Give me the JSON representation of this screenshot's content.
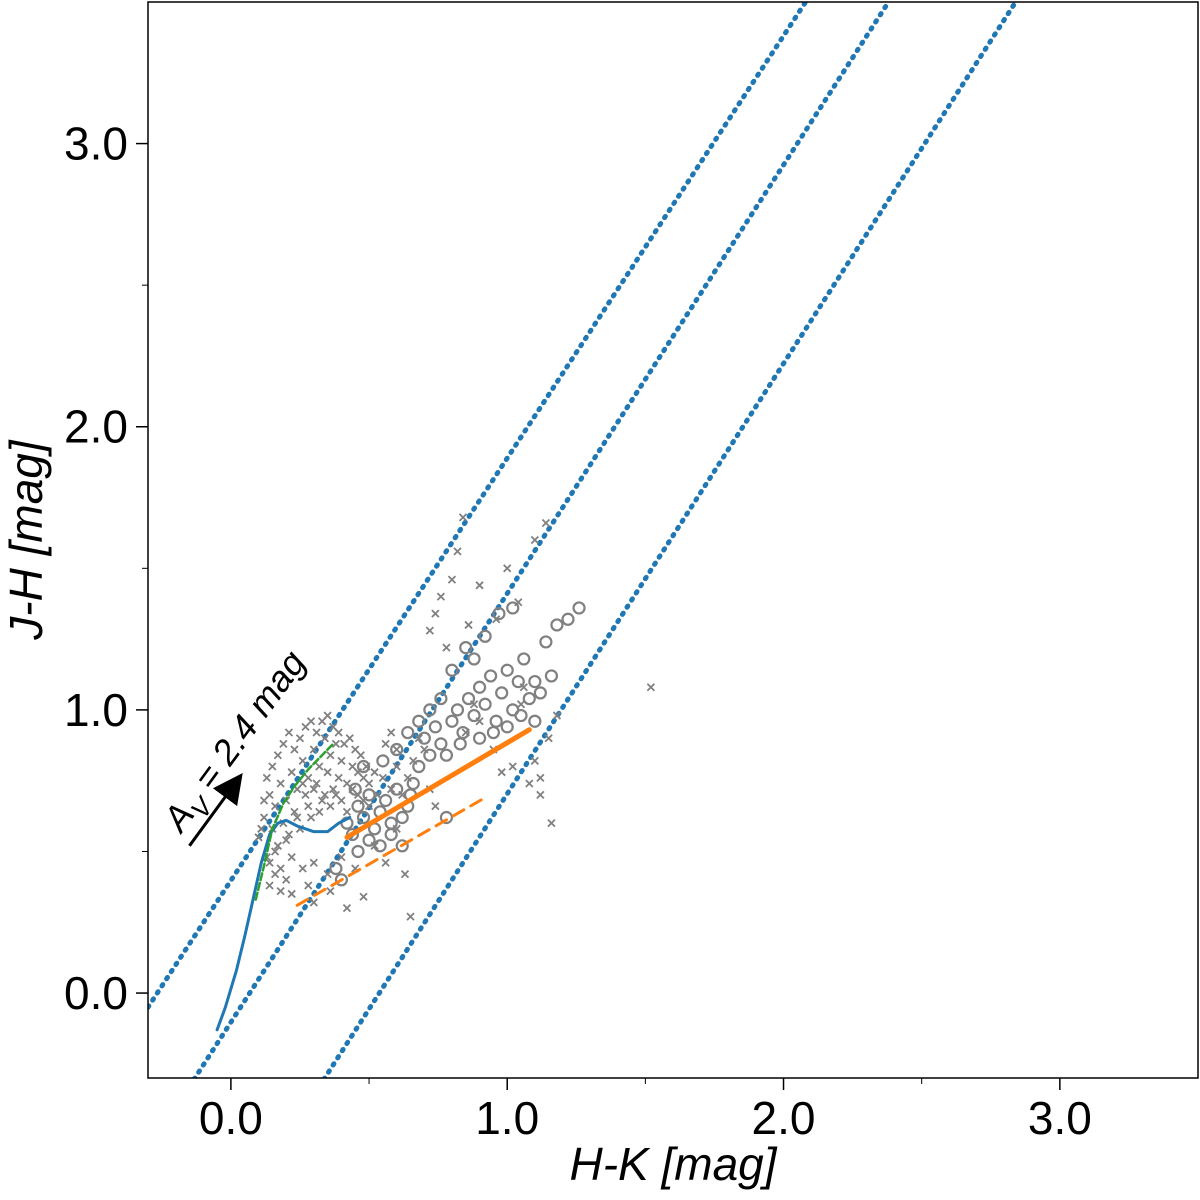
{
  "chart_data": {
    "type": "scatter",
    "xlabel": "H-K [mag]",
    "ylabel": "J-H [mag]",
    "xlim": [
      -0.3,
      3.5
    ],
    "ylim": [
      -0.3,
      3.5
    ],
    "x_ticks": [
      {
        "value": 0.0,
        "label": "0.0"
      },
      {
        "value": 1.0,
        "label": "1.0"
      },
      {
        "value": 2.0,
        "label": "2.0"
      },
      {
        "value": 3.0,
        "label": "3.0"
      }
    ],
    "y_ticks": [
      {
        "value": 0.0,
        "label": "0.0"
      },
      {
        "value": 1.0,
        "label": "1.0"
      },
      {
        "value": 2.0,
        "label": "2.0"
      },
      {
        "value": 3.0,
        "label": "3.0"
      }
    ],
    "minor_ticks": [
      -0.5,
      0.5,
      1.5,
      2.5
    ],
    "grid": false,
    "colors": {
      "dotted": "#1f77b4",
      "dwarf_locus": "#1f77b4",
      "giant_branch": "#2ca02c",
      "ctts": "#ff7f0e",
      "points": "#808080"
    },
    "annotation": {
      "text": "AV = 2.4 mag",
      "label_main": "A",
      "label_sub": "V",
      "label_rest": " = 2.4 mag",
      "arrow_from": [
        -0.15,
        0.52
      ],
      "arrow_to": [
        0.03,
        0.76
      ]
    },
    "reddening_lines": [
      {
        "name": "",
        "style": "dotted",
        "x": [
          -0.3,
          2.08
        ],
        "y": [
          -0.05,
          3.5
        ]
      },
      {
        "name": "",
        "style": "dotted",
        "x": [
          -0.15,
          2.38
        ],
        "y": [
          -0.33,
          3.5
        ]
      },
      {
        "name": "",
        "style": "dotted",
        "x": [
          0.32,
          2.84
        ],
        "y": [
          -0.33,
          3.5
        ]
      }
    ],
    "dwarf_locus": {
      "x": [
        -0.05,
        -0.02,
        0.02,
        0.05,
        0.08,
        0.11,
        0.14,
        0.17,
        0.2,
        0.24,
        0.3,
        0.35,
        0.39,
        0.43
      ],
      "y": [
        -0.13,
        -0.05,
        0.08,
        0.2,
        0.33,
        0.46,
        0.56,
        0.6,
        0.61,
        0.59,
        0.57,
        0.57,
        0.6,
        0.62
      ]
    },
    "giant_branch": {
      "x": [
        0.09,
        0.12,
        0.15,
        0.19,
        0.23,
        0.28,
        0.33,
        0.37
      ],
      "y": [
        0.33,
        0.45,
        0.58,
        0.67,
        0.73,
        0.79,
        0.84,
        0.88
      ]
    },
    "ctts_locus": {
      "style": "solid",
      "x": [
        0.42,
        1.08
      ],
      "y": [
        0.55,
        0.93
      ]
    },
    "ctts_dashed": {
      "style": "dashed",
      "x": [
        0.24,
        0.92
      ],
      "y": [
        0.31,
        0.69
      ]
    },
    "cross_points": [
      [
        0.1,
        0.55
      ],
      [
        0.12,
        0.62
      ],
      [
        0.13,
        0.48
      ],
      [
        0.14,
        0.7
      ],
      [
        0.15,
        0.58
      ],
      [
        0.16,
        0.66
      ],
      [
        0.17,
        0.52
      ],
      [
        0.18,
        0.74
      ],
      [
        0.19,
        0.6
      ],
      [
        0.2,
        0.68
      ],
      [
        0.21,
        0.56
      ],
      [
        0.22,
        0.78
      ],
      [
        0.23,
        0.64
      ],
      [
        0.24,
        0.72
      ],
      [
        0.25,
        0.58
      ],
      [
        0.26,
        0.82
      ],
      [
        0.27,
        0.7
      ],
      [
        0.28,
        0.76
      ],
      [
        0.29,
        0.62
      ],
      [
        0.3,
        0.86
      ],
      [
        0.31,
        0.74
      ],
      [
        0.32,
        0.8
      ],
      [
        0.33,
        0.68
      ],
      [
        0.34,
        0.9
      ],
      [
        0.35,
        0.78
      ],
      [
        0.36,
        0.84
      ],
      [
        0.37,
        0.72
      ],
      [
        0.38,
        0.88
      ],
      [
        0.39,
        0.76
      ],
      [
        0.4,
        0.82
      ],
      [
        0.42,
        0.74
      ],
      [
        0.44,
        0.8
      ],
      [
        0.46,
        0.7
      ],
      [
        0.48,
        0.76
      ],
      [
        0.5,
        0.66
      ],
      [
        0.14,
        0.46
      ],
      [
        0.16,
        0.5
      ],
      [
        0.18,
        0.44
      ],
      [
        0.2,
        0.54
      ],
      [
        0.22,
        0.48
      ],
      [
        0.13,
        0.76
      ],
      [
        0.15,
        0.8
      ],
      [
        0.17,
        0.84
      ],
      [
        0.19,
        0.88
      ],
      [
        0.21,
        0.92
      ],
      [
        0.23,
        0.86
      ],
      [
        0.25,
        0.9
      ],
      [
        0.27,
        0.94
      ],
      [
        0.29,
        0.96
      ],
      [
        0.31,
        0.92
      ],
      [
        0.33,
        0.96
      ],
      [
        0.35,
        0.98
      ],
      [
        0.37,
        0.94
      ],
      [
        0.39,
        0.92
      ],
      [
        0.41,
        0.88
      ],
      [
        0.43,
        0.9
      ],
      [
        0.45,
        0.86
      ],
      [
        0.47,
        0.84
      ],
      [
        0.49,
        0.8
      ],
      [
        0.52,
        0.78
      ],
      [
        0.11,
        0.58
      ],
      [
        0.12,
        0.68
      ],
      [
        0.24,
        0.62
      ],
      [
        0.26,
        0.74
      ],
      [
        0.28,
        0.66
      ],
      [
        0.3,
        0.72
      ],
      [
        0.32,
        0.64
      ],
      [
        0.34,
        0.7
      ],
      [
        0.36,
        0.66
      ],
      [
        0.38,
        0.7
      ],
      [
        0.4,
        0.68
      ],
      [
        0.42,
        0.64
      ],
      [
        0.44,
        0.72
      ],
      [
        0.46,
        0.78
      ],
      [
        0.48,
        0.68
      ],
      [
        0.5,
        0.74
      ],
      [
        0.53,
        0.7
      ],
      [
        0.55,
        0.76
      ],
      [
        0.58,
        0.72
      ],
      [
        0.6,
        0.8
      ],
      [
        0.14,
        0.38
      ],
      [
        0.16,
        0.42
      ],
      [
        0.18,
        0.36
      ],
      [
        0.2,
        0.4
      ],
      [
        0.22,
        0.35
      ],
      [
        0.26,
        0.44
      ],
      [
        0.28,
        0.38
      ],
      [
        0.3,
        0.46
      ],
      [
        0.35,
        0.42
      ],
      [
        0.4,
        0.48
      ],
      [
        0.45,
        0.44
      ],
      [
        0.52,
        0.52
      ],
      [
        0.56,
        0.46
      ],
      [
        0.6,
        0.58
      ],
      [
        0.63,
        0.42
      ],
      [
        0.65,
        0.27
      ],
      [
        0.3,
        0.32
      ],
      [
        0.36,
        0.36
      ],
      [
        0.42,
        0.3
      ],
      [
        0.48,
        0.34
      ],
      [
        0.62,
        0.7
      ],
      [
        0.64,
        0.76
      ],
      [
        0.66,
        0.82
      ],
      [
        0.68,
        0.9
      ],
      [
        0.7,
        0.86
      ],
      [
        0.72,
        0.72
      ],
      [
        0.74,
        0.66
      ],
      [
        0.56,
        0.88
      ],
      [
        0.58,
        0.92
      ],
      [
        0.6,
        0.86
      ],
      [
        0.72,
        1.28
      ],
      [
        0.74,
        1.34
      ],
      [
        0.76,
        1.4
      ],
      [
        0.78,
        1.22
      ],
      [
        0.8,
        1.46
      ],
      [
        0.82,
        1.56
      ],
      [
        0.84,
        1.68
      ],
      [
        0.86,
        1.3
      ],
      [
        0.9,
        1.44
      ],
      [
        0.96,
        1.32
      ],
      [
        1.0,
        1.5
      ],
      [
        1.04,
        1.38
      ],
      [
        1.1,
        1.6
      ],
      [
        1.14,
        1.66
      ],
      [
        1.16,
        0.6
      ],
      [
        1.1,
        0.82
      ],
      [
        1.12,
        0.76
      ],
      [
        1.18,
        0.98
      ],
      [
        1.06,
        1.08
      ],
      [
        1.52,
        1.08
      ],
      [
        0.85,
        0.92
      ],
      [
        0.9,
        0.96
      ],
      [
        0.95,
        0.86
      ],
      [
        0.98,
        0.78
      ],
      [
        1.02,
        0.8
      ],
      [
        1.08,
        0.74
      ],
      [
        1.12,
        0.7
      ],
      [
        1.15,
        0.9
      ],
      [
        0.88,
        1.02
      ],
      [
        1.05,
        1.02
      ]
    ],
    "circle_points": [
      [
        0.38,
        0.44
      ],
      [
        0.4,
        0.4
      ],
      [
        0.42,
        0.6
      ],
      [
        0.44,
        0.56
      ],
      [
        0.46,
        0.66
      ],
      [
        0.48,
        0.62
      ],
      [
        0.5,
        0.7
      ],
      [
        0.52,
        0.58
      ],
      [
        0.54,
        0.64
      ],
      [
        0.56,
        0.68
      ],
      [
        0.58,
        0.6
      ],
      [
        0.6,
        0.72
      ],
      [
        0.62,
        0.52
      ],
      [
        0.64,
        0.66
      ],
      [
        0.66,
        0.74
      ],
      [
        0.68,
        0.8
      ],
      [
        0.7,
        0.9
      ],
      [
        0.72,
        0.84
      ],
      [
        0.74,
        0.94
      ],
      [
        0.76,
        0.88
      ],
      [
        0.78,
        0.62
      ],
      [
        0.8,
        0.96
      ],
      [
        0.82,
        1.0
      ],
      [
        0.84,
        0.92
      ],
      [
        0.86,
        1.04
      ],
      [
        0.88,
        0.98
      ],
      [
        0.9,
        1.08
      ],
      [
        0.92,
        1.02
      ],
      [
        0.94,
        1.12
      ],
      [
        0.96,
        0.96
      ],
      [
        0.98,
        1.06
      ],
      [
        1.0,
        1.14
      ],
      [
        1.02,
        1.0
      ],
      [
        1.04,
        1.1
      ],
      [
        1.06,
        1.18
      ],
      [
        1.08,
        1.04
      ],
      [
        1.1,
        0.96
      ],
      [
        1.12,
        1.06
      ],
      [
        1.14,
        1.24
      ],
      [
        1.16,
        1.12
      ],
      [
        1.18,
        1.3
      ],
      [
        1.22,
        1.32
      ],
      [
        1.26,
        1.36
      ],
      [
        0.85,
        1.22
      ],
      [
        0.88,
        1.18
      ],
      [
        0.92,
        1.26
      ],
      [
        0.97,
        1.34
      ],
      [
        1.02,
        1.36
      ],
      [
        0.8,
        1.14
      ],
      [
        0.76,
        1.04
      ],
      [
        0.72,
        1.0
      ],
      [
        0.68,
        0.96
      ],
      [
        0.64,
        0.92
      ],
      [
        0.9,
        0.9
      ],
      [
        0.95,
        0.92
      ],
      [
        1.0,
        0.94
      ],
      [
        1.05,
        0.98
      ],
      [
        1.1,
        1.1
      ],
      [
        0.83,
        0.88
      ],
      [
        0.78,
        0.84
      ],
      [
        0.46,
        0.5
      ],
      [
        0.5,
        0.54
      ],
      [
        0.54,
        0.52
      ],
      [
        0.58,
        0.56
      ],
      [
        0.62,
        0.62
      ],
      [
        0.55,
        0.82
      ],
      [
        0.6,
        0.86
      ],
      [
        0.65,
        0.7
      ],
      [
        0.45,
        0.72
      ],
      [
        0.48,
        0.8
      ]
    ]
  }
}
